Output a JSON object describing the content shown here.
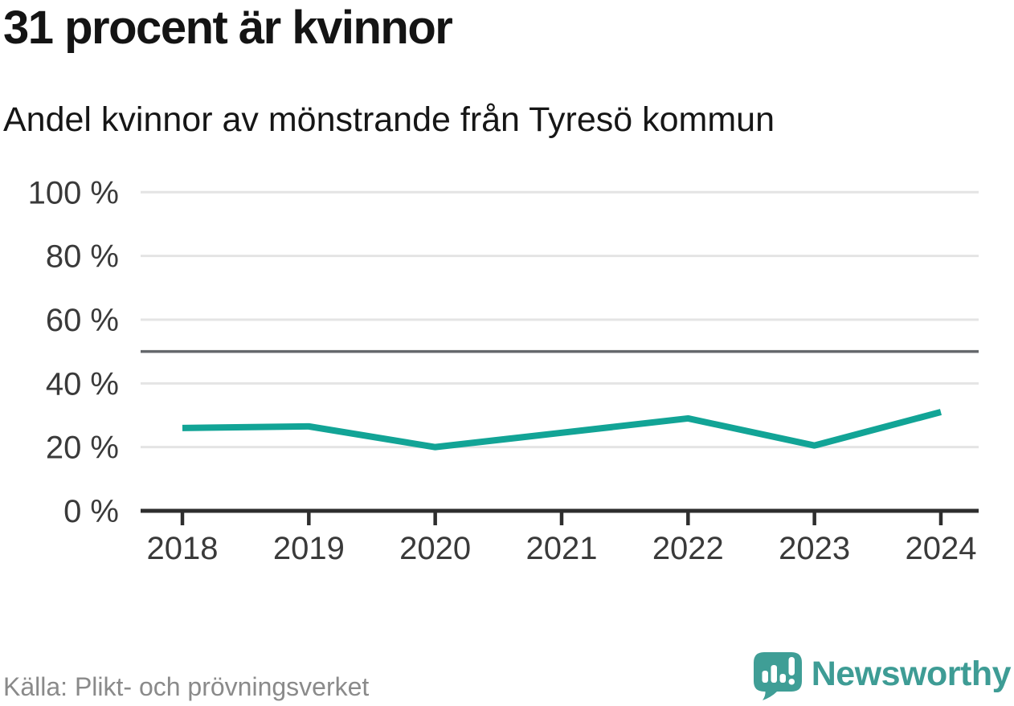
{
  "title": "31 procent är kvinnor",
  "subtitle": "Andel kvinnor av mönstrande från Tyresö kommun",
  "source_note": "Källa: Plikt- och prövningsverket",
  "branding": {
    "wordmark": "Newsworthy",
    "logo_icon": "speech-bubble-bar-chart-exclamation-icon",
    "wordmark_color": "#3E9C95",
    "icon_color": "#3F9E96"
  },
  "colors": {
    "line": "#12A496",
    "grid": "#E4E4E4",
    "reference_line": "#65686C",
    "axis": "#2E2E2E",
    "tick_label": "#3A3A3A",
    "title_text": "#141414",
    "source_text": "#8A8A8A",
    "background": "#FFFFFF"
  },
  "chart_data": {
    "type": "line",
    "title": "31 procent är kvinnor",
    "subtitle": "Andel kvinnor av mönstrande från Tyresö kommun",
    "categories": [
      "2018",
      "2019",
      "2020",
      "2021",
      "2022",
      "2023",
      "2024"
    ],
    "series": [
      {
        "name": "Andel kvinnor av mönstrande från Tyresö kommun",
        "values": [
          26,
          26.5,
          20,
          24.5,
          29,
          20.5,
          31
        ]
      }
    ],
    "unit": "%",
    "ylim": [
      0,
      100
    ],
    "yticks": [
      0,
      20,
      40,
      60,
      80,
      100
    ],
    "ytick_suffix": " %",
    "reference_line": {
      "value": 50
    },
    "grid": "horizontal",
    "legend": "none",
    "line_color": "#12A496",
    "source": "Källa: Plikt- och prövningsverket"
  }
}
